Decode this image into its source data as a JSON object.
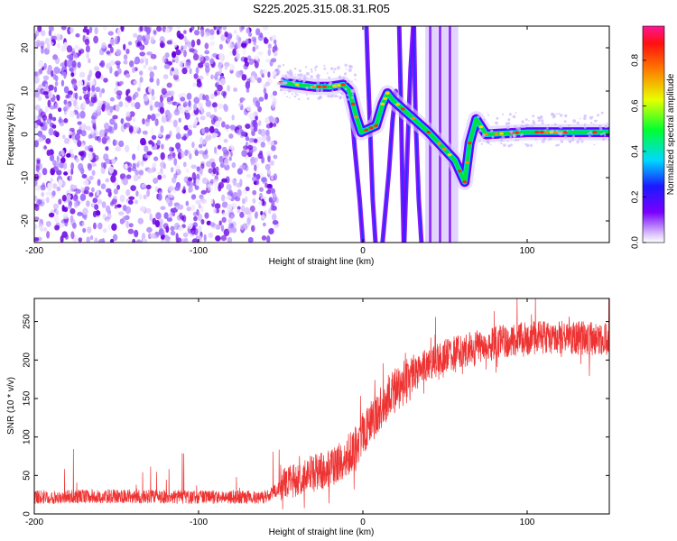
{
  "figure_title": "S225.2025.315.08.31.R05",
  "chart_data": [
    {
      "type": "heatmap",
      "title": "S225.2025.315.08.31.R05",
      "xlabel": "Height of straight line (km)",
      "ylabel": "Frequency (Hz)",
      "xlim": [
        -200,
        150
      ],
      "ylim": [
        -25,
        25
      ],
      "xticks": [
        -200,
        -100,
        0,
        100
      ],
      "yticks": [
        -20,
        -10,
        0,
        10,
        20
      ],
      "grid": false,
      "colormap": "rainbow (magenta low to red high, white at zero)",
      "colorbar": {
        "label": "Normalized spectral amplitude",
        "ticks": [
          0.0,
          0.2,
          0.4,
          0.6,
          0.8
        ],
        "range": [
          0,
          0.95
        ]
      },
      "ridge": [
        {
          "x": -50,
          "y": 12
        },
        {
          "x": -40,
          "y": 11.5
        },
        {
          "x": -30,
          "y": 11
        },
        {
          "x": -20,
          "y": 11
        },
        {
          "x": -12,
          "y": 11.5
        },
        {
          "x": -8,
          "y": 10
        },
        {
          "x": -4,
          "y": 4
        },
        {
          "x": -1,
          "y": 0.5
        },
        {
          "x": 8,
          "y": 2
        },
        {
          "x": 12,
          "y": 7
        },
        {
          "x": 15,
          "y": 9.5
        },
        {
          "x": 18,
          "y": 8
        },
        {
          "x": 40,
          "y": 0.5
        },
        {
          "x": 56,
          "y": -6
        },
        {
          "x": 62,
          "y": -11
        },
        {
          "x": 65,
          "y": -2
        },
        {
          "x": 69,
          "y": 3.5
        },
        {
          "x": 75,
          "y": 0
        },
        {
          "x": 100,
          "y": 0.5
        },
        {
          "x": 150,
          "y": 0.5
        }
      ],
      "noise_region": {
        "x_from": -200,
        "x_to": -52
      }
    },
    {
      "type": "line",
      "xlabel": "Height of straight line (km)",
      "ylabel": "SNR (10 * v/v)",
      "xlim": [
        -200,
        150
      ],
      "ylim": [
        0,
        280
      ],
      "xticks": [
        -200,
        -100,
        0,
        100
      ],
      "yticks": [
        0,
        50,
        100,
        150,
        200,
        250
      ],
      "grid": false,
      "series": [
        {
          "color": "#ee3333",
          "x": [
            -200,
            -150,
            -100,
            -60,
            -45,
            -35,
            -25,
            -15,
            -5,
            0,
            5,
            10,
            15,
            20,
            25,
            30,
            40,
            50,
            60,
            70,
            80,
            90,
            100,
            110,
            120,
            130,
            140,
            150
          ],
          "y": [
            22,
            23,
            22,
            22,
            40,
            50,
            55,
            65,
            85,
            105,
            120,
            135,
            150,
            160,
            170,
            180,
            195,
            205,
            212,
            217,
            222,
            226,
            228,
            230,
            230,
            229,
            228,
            228
          ]
        }
      ]
    }
  ],
  "colors": {
    "line": "#ee3333",
    "axes": "#000000",
    "background": "#ffffff"
  }
}
